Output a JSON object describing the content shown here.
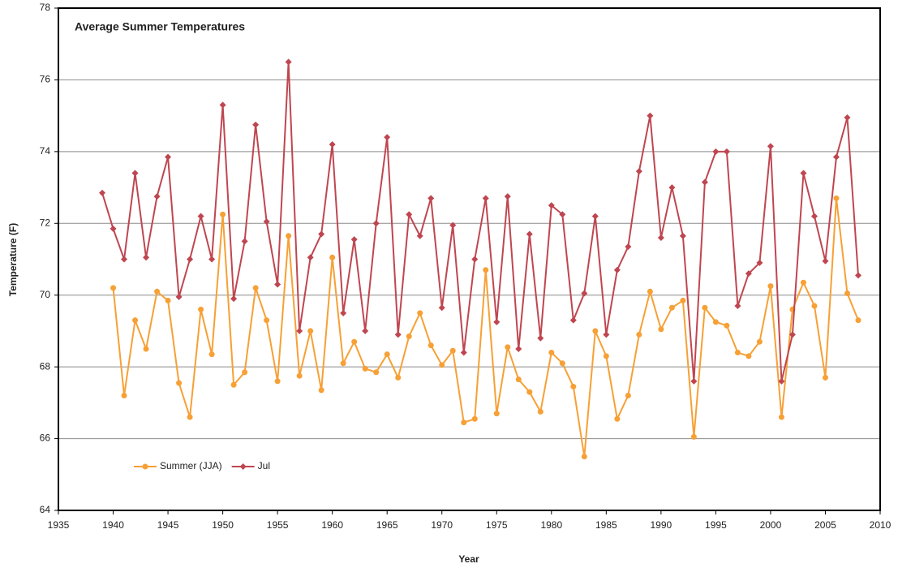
{
  "chart_data": {
    "type": "line",
    "title": "Average Summer Temperatures",
    "x_label": "Year",
    "y_label": "Temperature (F)",
    "x": [
      1939,
      1940,
      1941,
      1942,
      1943,
      1944,
      1945,
      1946,
      1947,
      1948,
      1949,
      1950,
      1951,
      1952,
      1953,
      1954,
      1955,
      1956,
      1957,
      1958,
      1959,
      1960,
      1961,
      1962,
      1963,
      1964,
      1965,
      1966,
      1967,
      1968,
      1969,
      1970,
      1971,
      1972,
      1973,
      1974,
      1975,
      1976,
      1977,
      1978,
      1979,
      1980,
      1981,
      1982,
      1983,
      1984,
      1985,
      1986,
      1987,
      1988,
      1989,
      1990,
      1991,
      1992,
      1993,
      1994,
      1995,
      1996,
      1997,
      1998,
      1999,
      2000,
      2001,
      2002,
      2003,
      2004,
      2005,
      2006,
      2007,
      2008
    ],
    "series": [
      {
        "name": "Summer (JJA)",
        "color": "#f7a035",
        "marker": "circle",
        "values": [
          null,
          70.2,
          67.2,
          69.3,
          68.5,
          70.1,
          69.85,
          67.55,
          66.6,
          69.6,
          68.35,
          72.25,
          67.5,
          67.85,
          70.2,
          69.3,
          67.6,
          71.65,
          67.75,
          69.0,
          67.35,
          71.05,
          68.1,
          68.7,
          67.95,
          67.85,
          68.35,
          67.7,
          68.85,
          69.5,
          68.6,
          68.05,
          68.45,
          66.45,
          66.55,
          70.7,
          66.7,
          68.55,
          67.65,
          67.3,
          66.75,
          68.4,
          68.1,
          67.45,
          65.5,
          69.0,
          68.3,
          66.55,
          67.2,
          68.9,
          70.1,
          69.05,
          69.65,
          69.85,
          66.05,
          69.65,
          69.25,
          69.15,
          68.4,
          68.3,
          68.7,
          70.25,
          66.6,
          69.6,
          70.35,
          69.7,
          67.7,
          72.7,
          70.05,
          69.3
        ]
      },
      {
        "name": "Jul",
        "color": "#bf4650",
        "marker": "diamond",
        "values": [
          72.85,
          71.85,
          71.0,
          73.4,
          71.05,
          72.75,
          73.85,
          69.95,
          71.0,
          72.2,
          71.0,
          75.3,
          69.9,
          71.5,
          74.75,
          72.05,
          70.3,
          76.5,
          69.0,
          71.05,
          71.7,
          74.2,
          69.5,
          71.55,
          69.0,
          72.0,
          74.4,
          68.9,
          72.25,
          71.65,
          72.7,
          69.65,
          71.95,
          68.4,
          71.0,
          72.7,
          69.25,
          72.75,
          68.5,
          71.7,
          68.8,
          72.5,
          72.25,
          69.3,
          70.05,
          72.2,
          68.9,
          70.7,
          71.35,
          73.45,
          75.0,
          71.6,
          73.0,
          71.65,
          67.6,
          73.15,
          74.0,
          74.0,
          69.7,
          70.6,
          70.9,
          74.15,
          67.6,
          68.9,
          73.4,
          72.2,
          70.95,
          73.85,
          74.95,
          70.55
        ]
      }
    ],
    "xlim": [
      1935,
      2010
    ],
    "xticks": [
      1935,
      1940,
      1945,
      1950,
      1955,
      1960,
      1965,
      1970,
      1975,
      1980,
      1985,
      1990,
      1995,
      2000,
      2005,
      2010
    ],
    "ylim": [
      64,
      78
    ],
    "yticks": [
      64,
      66,
      68,
      70,
      72,
      74,
      76,
      78
    ],
    "grid": true,
    "legend": "lower left"
  }
}
